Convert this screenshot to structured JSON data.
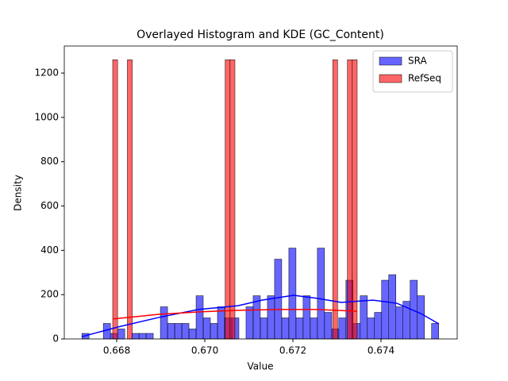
{
  "chart_data": {
    "type": "histogram",
    "title": "Overlayed Histogram and KDE (GC_Content)",
    "x_label": "Value",
    "y_label": "Density",
    "xlim": [
      0.66681,
      0.67573
    ],
    "ylim": [
      0,
      1322
    ],
    "xticks": [
      0.668,
      {
        "value": 0.67,
        "label": "0.670"
      },
      0.672,
      0.674
    ],
    "yticks": [
      0,
      200,
      400,
      600,
      800,
      1000,
      1200
    ],
    "legend": "upper right",
    "series": [
      {
        "name": "SRA",
        "color": "#0000ff",
        "bins": [
          0.66721,
          0.667372,
          0.667534,
          0.667696,
          0.667858,
          0.66802,
          0.668182,
          0.668344,
          0.668506,
          0.668668,
          0.66883,
          0.668992,
          0.669154,
          0.669316,
          0.669478,
          0.66964,
          0.669802,
          0.669964,
          0.670126,
          0.670288,
          0.67045,
          0.670612,
          0.670774,
          0.670936,
          0.671098,
          0.67126,
          0.671422,
          0.671584,
          0.671746,
          0.671908,
          0.67207,
          0.672232,
          0.672394,
          0.672556,
          0.672718,
          0.67288,
          0.673042,
          0.673204,
          0.673366,
          0.673528,
          0.67369,
          0.673852,
          0.674014,
          0.674176,
          0.674338,
          0.6745,
          0.674662,
          0.674824,
          0.674986,
          0.675148,
          0.67531
        ],
        "values": [
          25,
          0,
          0,
          70,
          25,
          45,
          0,
          25,
          25,
          25,
          0,
          145,
          70,
          70,
          70,
          45,
          195,
          95,
          70,
          145,
          95,
          95,
          0,
          145,
          195,
          95,
          195,
          360,
          95,
          410,
          95,
          195,
          95,
          410,
          120,
          45,
          95,
          265,
          70,
          195,
          95,
          120,
          265,
          290,
          145,
          170,
          265,
          195,
          0,
          70
        ],
        "kde": {
          "x": [
            0.667206,
            0.668053,
            0.668954,
            0.669855,
            0.670756,
            0.671297,
            0.672017,
            0.672558,
            0.673098,
            0.673819,
            0.674359,
            0.6749,
            0.675314
          ],
          "values": [
            10,
            55,
            97,
            133,
            150,
            175,
            197,
            183,
            165,
            175,
            161,
            115,
            68
          ]
        }
      },
      {
        "name": "RefSeq",
        "color": "#ff0000",
        "bins": [
          0.667909,
          0.66802,
          0.668131,
          0.668242,
          0.668353,
          0.668464,
          0.668575,
          0.668686,
          0.668797,
          0.668908,
          0.669019,
          0.66913,
          0.669241,
          0.669352,
          0.669463,
          0.669574,
          0.669685,
          0.669796,
          0.669907,
          0.670018,
          0.670129,
          0.67024,
          0.670351,
          0.670462,
          0.670573,
          0.670684,
          0.670795,
          0.670906,
          0.671017,
          0.671128,
          0.671239,
          0.67135,
          0.671461,
          0.671572,
          0.671683,
          0.671794,
          0.671905,
          0.672016,
          0.672127,
          0.672238,
          0.672349,
          0.67246,
          0.672571,
          0.672682,
          0.672793,
          0.672904,
          0.673015,
          0.673126,
          0.673237,
          0.673348,
          0.673459
        ],
        "values": [
          1260,
          0,
          0,
          1260,
          0,
          0,
          0,
          0,
          0,
          0,
          0,
          0,
          0,
          0,
          0,
          0,
          0,
          0,
          0,
          0,
          0,
          0,
          0,
          1260,
          1260,
          0,
          0,
          0,
          0,
          0,
          0,
          0,
          0,
          0,
          0,
          0,
          0,
          0,
          0,
          0,
          0,
          0,
          0,
          0,
          0,
          1260,
          0,
          0,
          1260,
          1260
        ],
        "kde": {
          "x": [
            0.667909,
            0.668954,
            0.669855,
            0.670756,
            0.671657,
            0.672558,
            0.673459
          ],
          "values": [
            90,
            111,
            122,
            129,
            133,
            133,
            125
          ]
        }
      }
    ]
  }
}
